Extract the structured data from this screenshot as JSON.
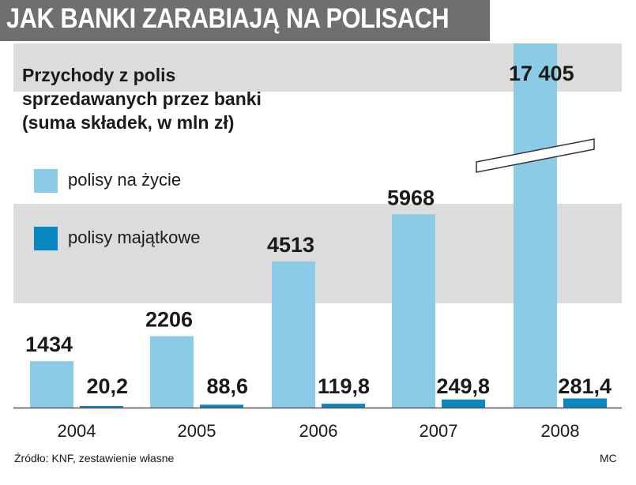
{
  "header": {
    "title": "JAK BANKI ZARABIAJĄ NA POLISACH"
  },
  "chart_data": {
    "type": "bar",
    "title": "Przychody z polis sprzedawanych przez banki (suma składek, w mln zł)",
    "title_lines": [
      "Przychody z polis",
      "sprzedawanych przez banki",
      "(suma składek, w mln zł)"
    ],
    "categories": [
      "2004",
      "2005",
      "2006",
      "2007",
      "2008"
    ],
    "series": [
      {
        "name": "polisy na życie",
        "color": "#8ccbe6",
        "values": [
          1434,
          2206,
          4513,
          5968,
          17405
        ],
        "labels": [
          "1434",
          "2206",
          "4513",
          "5968",
          "17 405"
        ]
      },
      {
        "name": "polisy majątkowe",
        "color": "#0b88c2",
        "values": [
          20.2,
          88.6,
          119.8,
          249.8,
          281.4
        ],
        "labels": [
          "20,2",
          "88,6",
          "119,8",
          "249,8",
          "281,4"
        ]
      }
    ],
    "axis_break": true,
    "grid": false,
    "legend_position": "top-left"
  },
  "footer": {
    "source": "Źródło: KNF, zestawienie własne",
    "author": "MC"
  }
}
